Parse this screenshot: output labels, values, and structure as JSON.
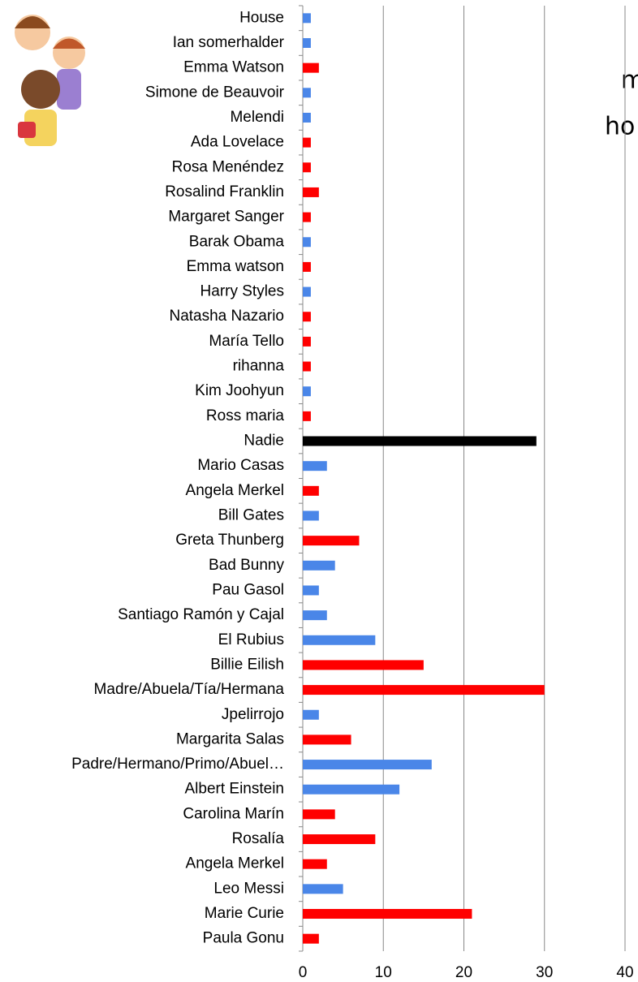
{
  "chart_data": {
    "type": "barh",
    "categories": [
      "House",
      "Ian somerhalder",
      "Emma Watson",
      "Simone de Beauvoir",
      "Melendi",
      "Ada Lovelace ",
      "Rosa Menéndez",
      "Rosalind Franklin",
      "Margaret Sanger",
      "Barak Obama",
      "Emma watson",
      "Harry Styles",
      "Natasha Nazario",
      "María Tello ",
      "rihanna",
      "Kim Joohyun",
      "Ross maria",
      "Nadie",
      "Mario Casas",
      "Angela Merkel",
      "Bill Gates",
      "Greta Thunberg",
      "Bad Bunny",
      "Pau Gasol",
      "Santiago Ramón y Cajal",
      "El Rubius",
      "Billie Eilish",
      "Madre/Abuela/Tía/Hermana",
      "Jpelirrojo",
      "Margarita Salas",
      "Padre/Hermano/Primo/Abuel…",
      "Albert Einstein",
      "Carolina Marín",
      "Rosalía",
      "Angela Merkel",
      "Leo Messi",
      "Marie Curie",
      "Paula Gonu"
    ],
    "values": [
      1,
      1,
      2,
      1,
      1,
      1,
      1,
      2,
      1,
      1,
      1,
      1,
      1,
      1,
      1,
      1,
      1,
      29,
      3,
      2,
      2,
      7,
      4,
      2,
      3,
      9,
      15,
      30,
      2,
      6,
      16,
      12,
      4,
      9,
      3,
      5,
      21,
      2
    ],
    "colors": [
      "#4a86e8",
      "#4a86e8",
      "#ff0000",
      "#4a86e8",
      "#4a86e8",
      "#ff0000",
      "#ff0000",
      "#ff0000",
      "#ff0000",
      "#4a86e8",
      "#ff0000",
      "#4a86e8",
      "#ff0000",
      "#ff0000",
      "#ff0000",
      "#4a86e8",
      "#ff0000",
      "#000000",
      "#4a86e8",
      "#ff0000",
      "#4a86e8",
      "#ff0000",
      "#4a86e8",
      "#4a86e8",
      "#4a86e8",
      "#4a86e8",
      "#ff0000",
      "#ff0000",
      "#4a86e8",
      "#ff0000",
      "#4a86e8",
      "#4a86e8",
      "#ff0000",
      "#ff0000",
      "#ff0000",
      "#4a86e8",
      "#ff0000",
      "#ff0000"
    ],
    "xlim": [
      0,
      40
    ],
    "xticks": [
      0,
      10,
      20,
      30,
      40
    ],
    "grid": true,
    "side_text": [
      "m",
      "ho"
    ]
  }
}
